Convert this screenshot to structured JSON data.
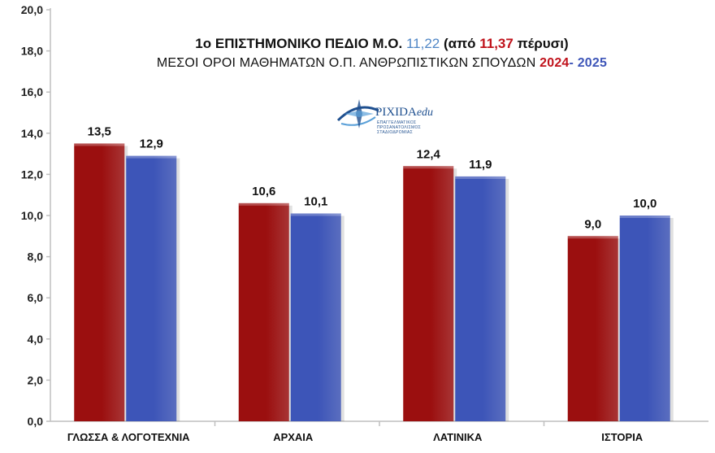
{
  "title": {
    "line1_prefix": "1ο ΕΠΙΣΤΗΜΟΝΙΚΟ ΠΕΔΙΟ Μ.Ο.",
    "line1_current": "11,22",
    "line1_mid": "(από",
    "line1_previous": "11,37",
    "line1_suffix": "πέρυσι)",
    "line2_prefix": "ΜΕΣΟΙ ΟΡΟΙ ΜΑΘΗΜΑΤΩΝ Ο.Π. ΑΝΘΡΩΠΙΣΤΙΚΩΝ ΣΠΟΥΔΩΝ",
    "line2_year1": "2024",
    "line2_year2": "- 2025"
  },
  "logo": {
    "name": "PIXIDA",
    "suffix": "edu",
    "tagline": "ΕΠΑΓΓΕΛΜΑΤΙΚΟΣ ΠΡΟΣΑΝΑΤΟΛΙΣΜΟΣ ΣΤΑΔΙΟΔΡΟΜΙΑΣ"
  },
  "colors": {
    "series_2024": "#9b0f0f",
    "series_2025": "#3d55b8",
    "current_value": "#4f86c6",
    "previous_value": "#c0121b",
    "axis": "#bfbfbf"
  },
  "chart_data": {
    "type": "bar",
    "categories": [
      "ΓΛΩΣΣΑ & ΛΟΓΟΤΕΧΝΙΑ",
      "ΑΡΧΑΙΑ",
      "ΛΑΤΙΝΙΚΑ",
      "ΙΣΤΟΡΙΑ"
    ],
    "series": [
      {
        "name": "2024",
        "values": [
          13.5,
          10.6,
          12.4,
          9.0
        ],
        "labels": [
          "13,5",
          "10,6",
          "12,4",
          "9,0"
        ]
      },
      {
        "name": "2025",
        "values": [
          12.9,
          10.1,
          11.9,
          10.0
        ],
        "labels": [
          "12,9",
          "10,1",
          "11,9",
          "10,0"
        ]
      }
    ],
    "ylim": [
      0,
      20
    ],
    "yticks": [
      "0,0",
      "2,0",
      "4,0",
      "6,0",
      "8,0",
      "10,0",
      "12,0",
      "14,0",
      "16,0",
      "18,0",
      "20,0"
    ],
    "xlabel": "",
    "ylabel": "",
    "grid": false,
    "legend": "none"
  }
}
